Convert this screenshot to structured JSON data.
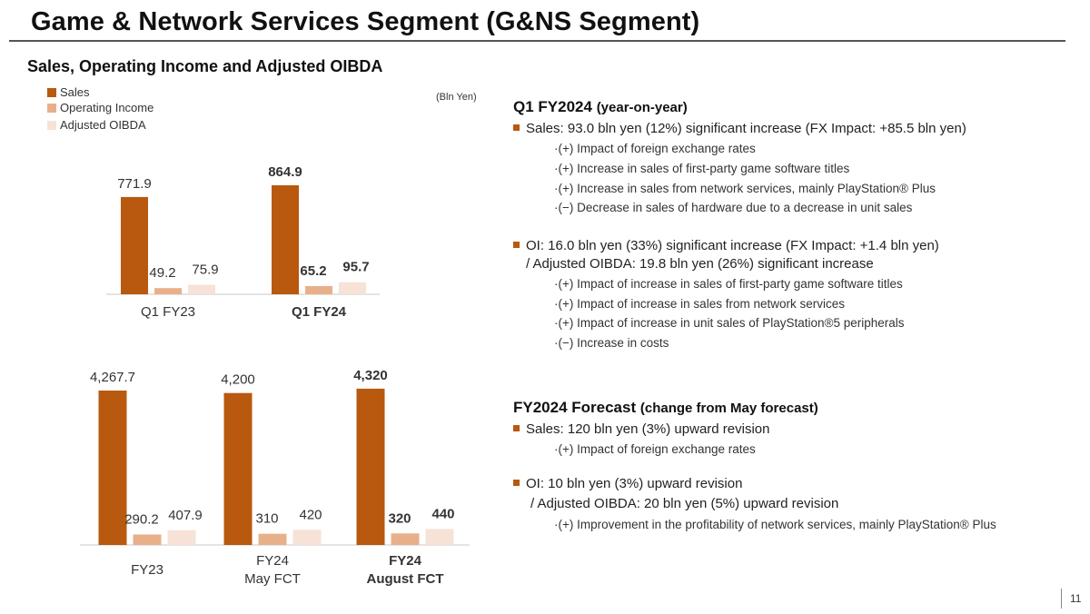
{
  "title": "Game & Network Services Segment (G&NS Segment)",
  "subtitle": "Sales, Operating Income and Adjusted OIBDA",
  "unit": "(Bln Yen)",
  "legend": [
    {
      "label": "Sales",
      "color": "#b8590f"
    },
    {
      "label": "Operating Income",
      "color": "#e8b08a"
    },
    {
      "label": "Adjusted OIBDA",
      "color": "#f6e2d6"
    }
  ],
  "chart_data": [
    {
      "type": "bar",
      "title": "",
      "categories": [
        "Q1 FY23",
        "Q1 FY24"
      ],
      "series": [
        {
          "name": "Sales",
          "values": [
            771.9,
            864.9
          ],
          "labels": [
            "771.9",
            "864.9"
          ]
        },
        {
          "name": "Operating Income",
          "values": [
            49.2,
            65.2
          ],
          "labels": [
            "49.2",
            "65.2"
          ]
        },
        {
          "name": "Adjusted OIBDA",
          "values": [
            75.9,
            95.7
          ],
          "labels": [
            "75.9",
            "95.7"
          ]
        }
      ],
      "bold_categories": [
        false,
        true
      ],
      "ylim": [
        0,
        1000
      ]
    },
    {
      "type": "bar",
      "title": "",
      "categories": [
        "FY23",
        "FY24 May FCT",
        "FY24 August FCT"
      ],
      "series": [
        {
          "name": "Sales",
          "values": [
            4267.7,
            4200,
            4320
          ],
          "labels": [
            "4,267.7",
            "4,200",
            "4,320"
          ]
        },
        {
          "name": "Operating Income",
          "values": [
            290.2,
            310,
            320
          ],
          "labels": [
            "290.2",
            "310",
            "320"
          ]
        },
        {
          "name": "Adjusted OIBDA",
          "values": [
            407.9,
            420,
            440
          ],
          "labels": [
            "407.9",
            "420",
            "440"
          ]
        }
      ],
      "bold_categories": [
        false,
        false,
        true
      ],
      "ylim": [
        0,
        4800
      ]
    }
  ],
  "q1": {
    "heading": "Q1 FY2024",
    "heading_note": "(year-on-year)",
    "sales_line": "Sales: 93.0 bln yen (12%) significant increase (FX Impact: +85.5 bln yen)",
    "sales_items": [
      "·(+) Impact of foreign exchange rates",
      "·(+) Increase in sales of first-party game software titles",
      "·(+) Increase in sales from network services, mainly PlayStation® Plus",
      "·(−) Decrease in sales of hardware due to a decrease in unit sales"
    ],
    "oi_line": "OI:  16.0 bln yen (33%) significant increase  (FX Impact: +1.4 bln yen)",
    "oi_line2": "/ Adjusted OIBDA: 19.8 bln yen (26%) significant increase",
    "oi_items": [
      "·(+) Impact of increase in sales of first-party game software titles",
      "·(+) Impact of increase in sales from network services",
      "·(+) Impact of increase in unit sales of PlayStation®5 peripherals",
      "·(−) Increase in costs"
    ]
  },
  "forecast": {
    "heading": "FY2024 Forecast",
    "heading_note": "(change from May forecast)",
    "sales_line": "Sales: 120 bln yen (3%) upward revision",
    "sales_items": [
      "·(+) Impact of foreign exchange rates"
    ],
    "oi_line": "OI: 10 bln yen (3%) upward revision",
    "oi_line2": "/ Adjusted OIBDA: 20 bln yen (5%) upward revision",
    "oi_items": [
      "·(+) Improvement in the profitability of network services, mainly PlayStation® Plus"
    ]
  },
  "page_number": "11"
}
